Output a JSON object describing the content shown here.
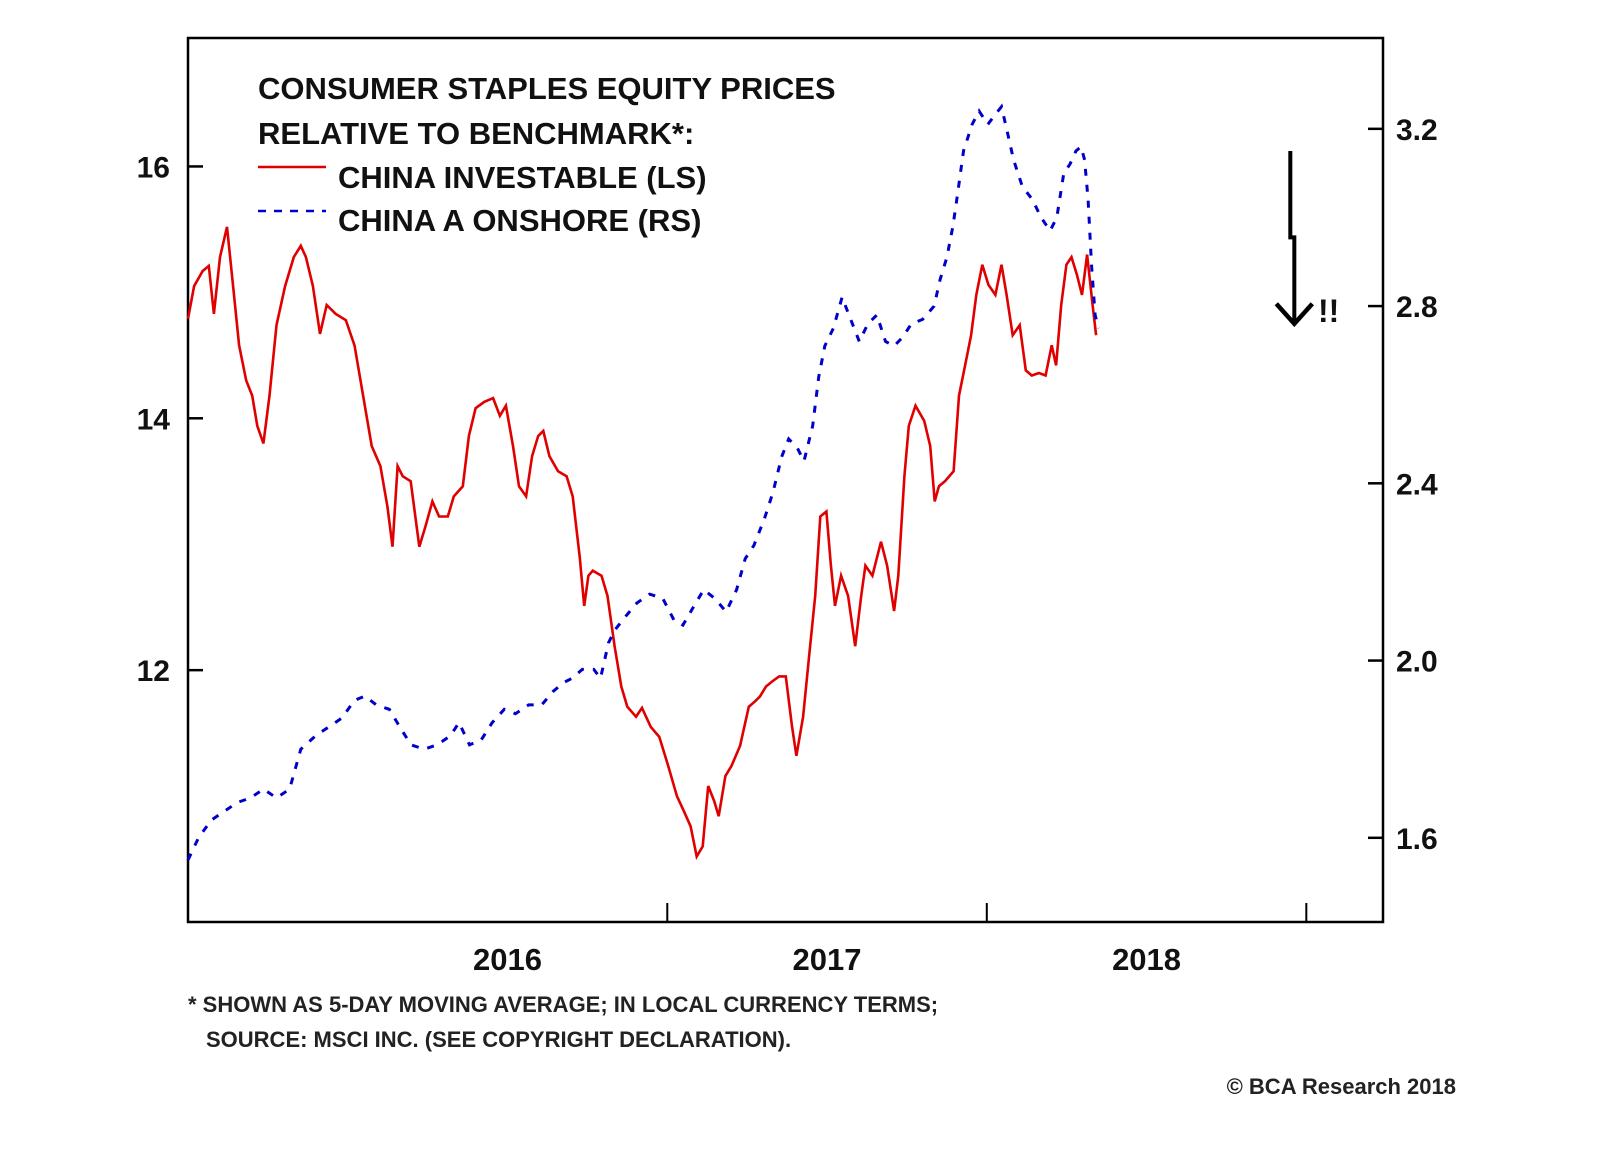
{
  "chart_data": {
    "type": "line",
    "title": "CONSUMER STAPLES EQUITY PRICES",
    "subtitle": "RELATIVE TO BENCHMARK*:",
    "xlabel": "",
    "ylabel_left": "",
    "ylabel_right": "",
    "x_range": [
      2015.5,
      2019.24
    ],
    "x_ticks": [
      2017.0,
      2018.0,
      2019.0
    ],
    "x_tick_labels": [
      {
        "label": "2016",
        "at": 2016.5
      },
      {
        "label": "2017",
        "at": 2017.5
      },
      {
        "label": "2018",
        "at": 2018.5
      }
    ],
    "y_left": {
      "range": [
        10.0,
        17.02
      ],
      "ticks": [
        12,
        14,
        16
      ],
      "tick_labels": [
        "12",
        "14",
        "16"
      ]
    },
    "y_right": {
      "range": [
        1.41,
        3.405
      ],
      "ticks": [
        1.6,
        2.0,
        2.4,
        2.8,
        3.2
      ],
      "tick_labels": [
        "1.6",
        "2.0",
        "2.4",
        "2.8",
        "3.2"
      ]
    },
    "grid": false,
    "legend_placement": "top-left",
    "series": [
      {
        "name": "CHINA INVESTABLE (LS)",
        "axis": "left",
        "color": "#e00000",
        "style": "solid",
        "points": [
          [
            2015.5,
            14.79
          ],
          [
            2015.519,
            15.05
          ],
          [
            2015.546,
            15.17
          ],
          [
            2015.565,
            15.21
          ],
          [
            2015.581,
            14.83
          ],
          [
            2015.6,
            15.28
          ],
          [
            2015.622,
            15.52
          ],
          [
            2015.641,
            15.05
          ],
          [
            2015.66,
            14.58
          ],
          [
            2015.682,
            14.3
          ],
          [
            2015.701,
            14.18
          ],
          [
            2015.717,
            13.94
          ],
          [
            2015.736,
            13.8
          ],
          [
            2015.755,
            14.18
          ],
          [
            2015.777,
            14.74
          ],
          [
            2015.804,
            15.05
          ],
          [
            2015.831,
            15.28
          ],
          [
            2015.853,
            15.37
          ],
          [
            2015.869,
            15.28
          ],
          [
            2015.891,
            15.05
          ],
          [
            2015.913,
            14.67
          ],
          [
            2015.934,
            14.9
          ],
          [
            2015.962,
            14.83
          ],
          [
            2015.994,
            14.78
          ],
          [
            2016.021,
            14.58
          ],
          [
            2016.048,
            14.18
          ],
          [
            2016.075,
            13.78
          ],
          [
            2016.102,
            13.62
          ],
          [
            2016.124,
            13.3
          ],
          [
            2016.14,
            12.98
          ],
          [
            2016.156,
            13.62
          ],
          [
            2016.172,
            13.54
          ],
          [
            2016.197,
            13.5
          ],
          [
            2016.224,
            12.98
          ],
          [
            2016.243,
            13.14
          ],
          [
            2016.265,
            13.34
          ],
          [
            2016.286,
            13.22
          ],
          [
            2016.313,
            13.22
          ],
          [
            2016.332,
            13.38
          ],
          [
            2016.36,
            13.46
          ],
          [
            2016.379,
            13.86
          ],
          [
            2016.4,
            14.08
          ],
          [
            2016.427,
            14.13
          ],
          [
            2016.455,
            14.16
          ],
          [
            2016.476,
            14.02
          ],
          [
            2016.495,
            14.1
          ],
          [
            2016.517,
            13.78
          ],
          [
            2016.536,
            13.46
          ],
          [
            2016.558,
            13.38
          ],
          [
            2016.577,
            13.7
          ],
          [
            2016.596,
            13.86
          ],
          [
            2016.612,
            13.9
          ],
          [
            2016.631,
            13.7
          ],
          [
            2016.658,
            13.58
          ],
          [
            2016.685,
            13.54
          ],
          [
            2016.704,
            13.38
          ],
          [
            2016.726,
            12.9
          ],
          [
            2016.74,
            12.51
          ],
          [
            2016.753,
            12.75
          ],
          [
            2016.767,
            12.79
          ],
          [
            2016.794,
            12.75
          ],
          [
            2016.813,
            12.59
          ],
          [
            2016.835,
            12.19
          ],
          [
            2016.856,
            11.87
          ],
          [
            2016.875,
            11.71
          ],
          [
            2016.902,
            11.63
          ],
          [
            2016.921,
            11.7
          ],
          [
            2016.948,
            11.55
          ],
          [
            2016.975,
            11.47
          ],
          [
            2017.003,
            11.24
          ],
          [
            2017.03,
            11.0
          ],
          [
            2017.052,
            10.88
          ],
          [
            2017.073,
            10.76
          ],
          [
            2017.092,
            10.52
          ],
          [
            2017.111,
            10.6
          ],
          [
            2017.128,
            11.08
          ],
          [
            2017.147,
            10.96
          ],
          [
            2017.161,
            10.84
          ],
          [
            2017.182,
            11.16
          ],
          [
            2017.201,
            11.24
          ],
          [
            2017.228,
            11.4
          ],
          [
            2017.255,
            11.71
          ],
          [
            2017.274,
            11.75
          ],
          [
            2017.29,
            11.79
          ],
          [
            2017.309,
            11.87
          ],
          [
            2017.328,
            11.91
          ],
          [
            2017.35,
            11.95
          ],
          [
            2017.371,
            11.95
          ],
          [
            2017.39,
            11.56
          ],
          [
            2017.404,
            11.32
          ],
          [
            2017.425,
            11.63
          ],
          [
            2017.444,
            12.11
          ],
          [
            2017.463,
            12.59
          ],
          [
            2017.479,
            13.22
          ],
          [
            2017.498,
            13.26
          ],
          [
            2017.512,
            12.83
          ],
          [
            2017.525,
            12.51
          ],
          [
            2017.544,
            12.75
          ],
          [
            2017.566,
            12.59
          ],
          [
            2017.588,
            12.19
          ],
          [
            2017.607,
            12.59
          ],
          [
            2017.62,
            12.83
          ],
          [
            2017.642,
            12.75
          ],
          [
            2017.669,
            13.02
          ],
          [
            2017.688,
            12.83
          ],
          [
            2017.71,
            12.47
          ],
          [
            2017.723,
            12.75
          ],
          [
            2017.742,
            13.54
          ],
          [
            2017.756,
            13.94
          ],
          [
            2017.777,
            14.1
          ],
          [
            2017.804,
            13.98
          ],
          [
            2017.823,
            13.78
          ],
          [
            2017.837,
            13.34
          ],
          [
            2017.85,
            13.46
          ],
          [
            2017.869,
            13.5
          ],
          [
            2017.896,
            13.58
          ],
          [
            2017.913,
            14.18
          ],
          [
            2017.932,
            14.42
          ],
          [
            2017.951,
            14.66
          ],
          [
            2017.967,
            14.98
          ],
          [
            2017.986,
            15.22
          ],
          [
            2018.005,
            15.06
          ],
          [
            2018.027,
            14.98
          ],
          [
            2018.046,
            15.22
          ],
          [
            2018.062,
            14.98
          ],
          [
            2018.081,
            14.66
          ],
          [
            2018.103,
            14.74
          ],
          [
            2018.122,
            14.38
          ],
          [
            2018.141,
            14.34
          ],
          [
            2018.163,
            14.36
          ],
          [
            2018.184,
            14.34
          ],
          [
            2018.203,
            14.58
          ],
          [
            2018.217,
            14.42
          ],
          [
            2018.233,
            14.9
          ],
          [
            2018.249,
            15.22
          ],
          [
            2018.265,
            15.28
          ],
          [
            2018.282,
            15.14
          ],
          [
            2018.298,
            14.98
          ],
          [
            2018.314,
            15.3
          ],
          [
            2018.331,
            14.9
          ],
          [
            2018.342,
            14.66
          ]
        ]
      },
      {
        "name": "CHINA A ONSHORE (RS)",
        "axis": "right",
        "color": "#0000cc",
        "style": "dashed",
        "points": [
          [
            2015.5,
            1.55
          ],
          [
            2015.533,
            1.6
          ],
          [
            2015.573,
            1.64
          ],
          [
            2015.614,
            1.66
          ],
          [
            2015.655,
            1.68
          ],
          [
            2015.696,
            1.69
          ],
          [
            2015.736,
            1.71
          ],
          [
            2015.777,
            1.69
          ],
          [
            2015.818,
            1.71
          ],
          [
            2015.853,
            1.8
          ],
          [
            2015.899,
            1.83
          ],
          [
            2015.94,
            1.85
          ],
          [
            2015.981,
            1.87
          ],
          [
            2016.021,
            1.91
          ],
          [
            2016.054,
            1.92
          ],
          [
            2016.089,
            1.9
          ],
          [
            2016.13,
            1.89
          ],
          [
            2016.163,
            1.85
          ],
          [
            2016.198,
            1.81
          ],
          [
            2016.239,
            1.8
          ],
          [
            2016.28,
            1.81
          ],
          [
            2016.321,
            1.83
          ],
          [
            2016.348,
            1.86
          ],
          [
            2016.381,
            1.81
          ],
          [
            2016.417,
            1.82
          ],
          [
            2016.452,
            1.86
          ],
          [
            2016.49,
            1.89
          ],
          [
            2016.525,
            1.88
          ],
          [
            2016.566,
            1.9
          ],
          [
            2016.607,
            1.9
          ],
          [
            2016.642,
            1.93
          ],
          [
            2016.675,
            1.95
          ],
          [
            2016.702,
            1.96
          ],
          [
            2016.734,
            1.98
          ],
          [
            2016.77,
            1.98
          ],
          [
            2016.791,
            1.96
          ],
          [
            2016.816,
            2.04
          ],
          [
            2016.837,
            2.07
          ],
          [
            2016.87,
            2.1
          ],
          [
            2016.905,
            2.13
          ],
          [
            2016.945,
            2.15
          ],
          [
            2016.986,
            2.14
          ],
          [
            2017.022,
            2.09
          ],
          [
            2017.049,
            2.08
          ],
          [
            2017.081,
            2.12
          ],
          [
            2017.114,
            2.16
          ],
          [
            2017.149,
            2.14
          ],
          [
            2017.184,
            2.11
          ],
          [
            2017.217,
            2.16
          ],
          [
            2017.244,
            2.23
          ],
          [
            2017.271,
            2.26
          ],
          [
            2017.304,
            2.32
          ],
          [
            2017.331,
            2.38
          ],
          [
            2017.358,
            2.46
          ],
          [
            2017.38,
            2.5
          ],
          [
            2017.407,
            2.48
          ],
          [
            2017.428,
            2.45
          ],
          [
            2017.455,
            2.53
          ],
          [
            2017.474,
            2.64
          ],
          [
            2017.493,
            2.71
          ],
          [
            2017.52,
            2.75
          ],
          [
            2017.547,
            2.82
          ],
          [
            2017.574,
            2.77
          ],
          [
            2017.601,
            2.72
          ],
          [
            2017.628,
            2.76
          ],
          [
            2017.656,
            2.78
          ],
          [
            2017.683,
            2.72
          ],
          [
            2017.71,
            2.71
          ],
          [
            2017.737,
            2.73
          ],
          [
            2017.764,
            2.76
          ],
          [
            2017.799,
            2.77
          ],
          [
            2017.835,
            2.8
          ],
          [
            2017.854,
            2.86
          ],
          [
            2017.875,
            2.91
          ],
          [
            2017.894,
            2.98
          ],
          [
            2017.908,
            3.05
          ],
          [
            2017.927,
            3.15
          ],
          [
            2017.954,
            3.21
          ],
          [
            2017.976,
            3.24
          ],
          [
            2018.003,
            3.21
          ],
          [
            2018.024,
            3.23
          ],
          [
            2018.046,
            3.25
          ],
          [
            2018.062,
            3.2
          ],
          [
            2018.084,
            3.13
          ],
          [
            2018.111,
            3.07
          ],
          [
            2018.143,
            3.04
          ],
          [
            2018.17,
            3.0
          ],
          [
            2018.198,
            2.97
          ],
          [
            2018.219,
            3.0
          ],
          [
            2018.241,
            3.1
          ],
          [
            2018.26,
            3.12
          ],
          [
            2018.279,
            3.15
          ],
          [
            2018.295,
            3.16
          ],
          [
            2018.306,
            3.13
          ],
          [
            2018.317,
            3.04
          ],
          [
            2018.328,
            2.89
          ],
          [
            2018.339,
            2.78
          ],
          [
            2018.35,
            2.75
          ]
        ]
      }
    ],
    "annotations": [
      {
        "type": "arrow",
        "direction": "down",
        "at_x": 2019.0,
        "from_right_value": 3.15,
        "to_right_value": 2.76
      },
      {
        "type": "text",
        "text": "!!",
        "at_x": 2019.1,
        "at_right_value": 2.79
      }
    ]
  },
  "legend": {
    "title_line1": "CONSUMER STAPLES EQUITY PRICES",
    "title_line2": "RELATIVE TO BENCHMARK*:",
    "items": [
      {
        "label": "CHINA INVESTABLE (LS)",
        "color": "#e00000",
        "style": "solid"
      },
      {
        "label": "CHINA A ONSHORE (RS)",
        "color": "#0000cc",
        "style": "dashed"
      }
    ]
  },
  "annotation_text": "!!",
  "footnote": {
    "line1": "* SHOWN AS 5-DAY MOVING AVERAGE; IN LOCAL CURRENCY TERMS;",
    "line2": "SOURCE: MSCI INC. (SEE COPYRIGHT DECLARATION)."
  },
  "copyright": "© BCA Research 2018"
}
